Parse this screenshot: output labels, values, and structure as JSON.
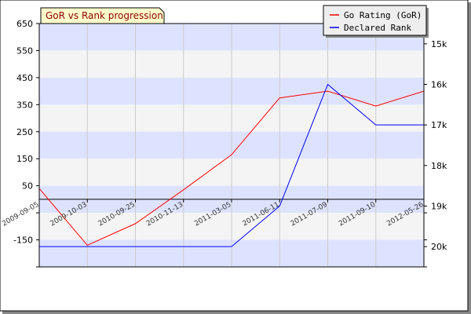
{
  "chart_data": {
    "type": "line",
    "title": "GoR vs Rank progression",
    "x": [
      "2009-09-05",
      "2009-10-03",
      "2010-09-25",
      "2010-11-13",
      "2011-03-05",
      "2011-06-11",
      "2011-07-09",
      "2011-09-10",
      "2012-05-26"
    ],
    "x_tick_labels": [
      "2009-09-05",
      "2009-10-03",
      "2010-09-25",
      "2010-11-13",
      "2011-03-05",
      "2011-06-11",
      "2011-07-09",
      "2011-09-10",
      "2012-05-26"
    ],
    "y_left": {
      "ylim": [
        -250,
        650
      ],
      "tick_values": [
        650,
        550,
        450,
        350,
        250,
        150,
        50,
        -150
      ],
      "tick_labels": [
        "650",
        "550",
        "450",
        "350",
        "250",
        "150",
        "50",
        "-150"
      ]
    },
    "y_right": {
      "ylim": [
        20500,
        14500
      ],
      "tick_values": [
        15000,
        16000,
        17000,
        18000,
        19000,
        20000
      ],
      "tick_labels": [
        "15k",
        "16k",
        "17k",
        "18k",
        "19k",
        "20k"
      ]
    },
    "series": [
      {
        "name": "Go Rating (GoR)",
        "axis": "left",
        "color": "#ff0000",
        "values": [
          40,
          -170,
          -90,
          35,
          165,
          375,
          400,
          345,
          400
        ]
      },
      {
        "name": "Declared Rank",
        "axis": "right",
        "color": "#0000ff",
        "values": [
          20000,
          20000,
          20000,
          20000,
          20000,
          19000,
          16000,
          17000,
          17000
        ]
      }
    ],
    "legend_position": "top-right",
    "grid": true,
    "band_colors": [
      "#dde3ff",
      "#f4f4f4"
    ]
  }
}
